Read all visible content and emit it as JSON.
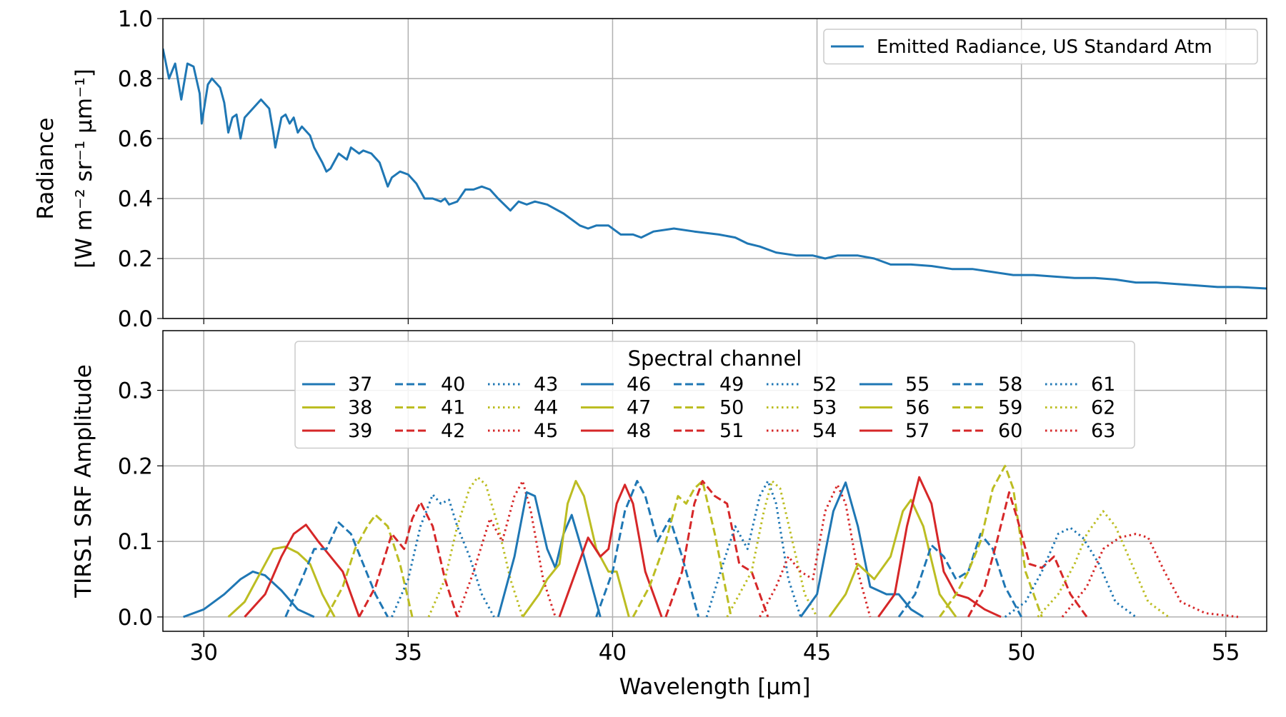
{
  "chart_data": [
    {
      "type": "line",
      "ylabel": [
        "Radiance",
        "[W m⁻² sr⁻¹ μm⁻¹]"
      ],
      "xlim": [
        29,
        56
      ],
      "xticks": [
        30,
        35,
        40,
        45,
        50,
        55
      ],
      "ylim": [
        0,
        1
      ],
      "yticks": [
        {
          "value": 0,
          "label": "0.0"
        },
        0.2,
        0.4,
        0.6,
        0.8,
        {
          "value": 1,
          "label": "1.0"
        }
      ],
      "grid": true,
      "legend_loc": "upper right",
      "series": [
        {
          "name": "Emitted Radiance, US Standard Atm",
          "color": "#1f77b4",
          "style": "solid",
          "x": [
            29.0,
            29.15,
            29.3,
            29.45,
            29.6,
            29.75,
            29.9,
            29.95,
            30.1,
            30.2,
            30.4,
            30.5,
            30.6,
            30.7,
            30.8,
            30.9,
            31.0,
            31.2,
            31.4,
            31.6,
            31.7,
            31.75,
            31.9,
            32.0,
            32.1,
            32.2,
            32.3,
            32.4,
            32.6,
            32.7,
            32.9,
            33.0,
            33.1,
            33.3,
            33.5,
            33.6,
            33.8,
            33.9,
            34.1,
            34.3,
            34.5,
            34.6,
            34.8,
            35.0,
            35.2,
            35.4,
            35.6,
            35.8,
            35.9,
            36.0,
            36.2,
            36.4,
            36.6,
            36.8,
            37.0,
            37.2,
            37.5,
            37.7,
            37.9,
            38.1,
            38.4,
            38.8,
            39.2,
            39.4,
            39.6,
            39.9,
            40.2,
            40.5,
            40.7,
            41.0,
            41.5,
            42.0,
            42.6,
            43.0,
            43.3,
            43.6,
            44.0,
            44.5,
            44.9,
            45.2,
            45.5,
            46.0,
            46.4,
            46.8,
            47.3,
            47.8,
            48.3,
            48.8,
            49.3,
            49.8,
            50.3,
            50.8,
            51.3,
            51.8,
            52.3,
            52.8,
            53.3,
            53.8,
            54.3,
            54.8,
            55.3,
            56.0
          ],
          "values": [
            0.9,
            0.8,
            0.85,
            0.73,
            0.85,
            0.84,
            0.75,
            0.65,
            0.78,
            0.8,
            0.77,
            0.72,
            0.62,
            0.67,
            0.68,
            0.6,
            0.67,
            0.7,
            0.73,
            0.7,
            0.62,
            0.57,
            0.67,
            0.68,
            0.65,
            0.67,
            0.62,
            0.64,
            0.61,
            0.57,
            0.52,
            0.49,
            0.5,
            0.55,
            0.53,
            0.57,
            0.55,
            0.56,
            0.55,
            0.52,
            0.44,
            0.47,
            0.49,
            0.48,
            0.45,
            0.4,
            0.4,
            0.39,
            0.4,
            0.38,
            0.39,
            0.43,
            0.43,
            0.44,
            0.43,
            0.4,
            0.36,
            0.39,
            0.38,
            0.39,
            0.38,
            0.35,
            0.31,
            0.3,
            0.31,
            0.31,
            0.28,
            0.28,
            0.27,
            0.29,
            0.3,
            0.29,
            0.28,
            0.27,
            0.25,
            0.24,
            0.22,
            0.21,
            0.21,
            0.2,
            0.21,
            0.21,
            0.2,
            0.18,
            0.18,
            0.175,
            0.165,
            0.165,
            0.155,
            0.145,
            0.145,
            0.14,
            0.135,
            0.135,
            0.13,
            0.12,
            0.12,
            0.115,
            0.11,
            0.105,
            0.105,
            0.1
          ]
        }
      ]
    },
    {
      "type": "line",
      "ylabel": "TIRS1 SRF Amplitude",
      "xlabel": "Wavelength [μm]",
      "xlim": [
        29,
        56
      ],
      "xticks": [
        30,
        35,
        40,
        45,
        50,
        55
      ],
      "ylim": [
        -0.019,
        0.379
      ],
      "yticks": [
        {
          "value": 0,
          "label": "0.0"
        },
        0.1,
        0.2,
        0.3
      ],
      "grid": true,
      "legend_loc": "upper center",
      "legend_title": "Spectral channel",
      "legend_ncol": 9,
      "series": [
        {
          "name": "37",
          "color": "#1f77b4",
          "style": "solid",
          "x": [
            29.5,
            30.0,
            30.5,
            30.9,
            31.2,
            31.5,
            31.9,
            32.3,
            32.7
          ],
          "values": [
            0,
            0.01,
            0.03,
            0.05,
            0.06,
            0.055,
            0.035,
            0.01,
            0
          ]
        },
        {
          "name": "38",
          "color": "#bcbd22",
          "style": "solid",
          "x": [
            30.6,
            31.0,
            31.4,
            31.7,
            32.0,
            32.3,
            32.6,
            32.9,
            33.2
          ],
          "values": [
            0,
            0.02,
            0.06,
            0.09,
            0.093,
            0.085,
            0.07,
            0.03,
            0
          ]
        },
        {
          "name": "39",
          "color": "#d62728",
          "style": "solid",
          "x": [
            31.0,
            31.5,
            31.9,
            32.2,
            32.5,
            32.8,
            33.1,
            33.4,
            33.8
          ],
          "values": [
            0,
            0.03,
            0.08,
            0.11,
            0.122,
            0.1,
            0.08,
            0.06,
            0
          ]
        },
        {
          "name": "40",
          "color": "#1f77b4",
          "style": "dashed",
          "x": [
            32.0,
            32.4,
            32.7,
            33.0,
            33.3,
            33.6,
            33.9,
            34.2,
            34.5
          ],
          "values": [
            0,
            0.05,
            0.09,
            0.09,
            0.125,
            0.11,
            0.07,
            0.03,
            0
          ]
        },
        {
          "name": "41",
          "color": "#bcbd22",
          "style": "dashed",
          "x": [
            33.0,
            33.4,
            33.7,
            34.0,
            34.2,
            34.5,
            34.8,
            35.1
          ],
          "values": [
            0,
            0.04,
            0.09,
            0.12,
            0.135,
            0.12,
            0.07,
            0
          ]
        },
        {
          "name": "42",
          "color": "#d62728",
          "style": "dashed",
          "x": [
            33.8,
            34.2,
            34.6,
            34.9,
            35.1,
            35.3,
            35.6,
            35.9,
            36.2
          ],
          "values": [
            0,
            0.04,
            0.11,
            0.09,
            0.13,
            0.152,
            0.12,
            0.05,
            0
          ]
        },
        {
          "name": "43",
          "color": "#1f77b4",
          "style": "dotted",
          "x": [
            34.6,
            35.0,
            35.3,
            35.6,
            35.8,
            36.0,
            36.2,
            36.5,
            36.8,
            37.1
          ],
          "values": [
            0,
            0.05,
            0.12,
            0.162,
            0.15,
            0.155,
            0.12,
            0.08,
            0.03,
            0
          ]
        },
        {
          "name": "44",
          "color": "#bcbd22",
          "style": "dotted",
          "x": [
            35.5,
            35.9,
            36.2,
            36.5,
            36.7,
            36.9,
            37.2,
            37.5,
            37.8
          ],
          "values": [
            0,
            0.05,
            0.12,
            0.17,
            0.185,
            0.175,
            0.12,
            0.05,
            0
          ]
        },
        {
          "name": "45",
          "color": "#d62728",
          "style": "dotted",
          "x": [
            36.2,
            36.6,
            37.0,
            37.3,
            37.6,
            37.8,
            38.0,
            38.3,
            38.6
          ],
          "values": [
            0,
            0.06,
            0.13,
            0.1,
            0.16,
            0.18,
            0.14,
            0.05,
            0
          ]
        },
        {
          "name": "46",
          "color": "#1f77b4",
          "style": "solid",
          "x": [
            37.2,
            37.6,
            37.9,
            38.1,
            38.4,
            38.6,
            38.8,
            39.0,
            39.3,
            39.7
          ],
          "values": [
            0,
            0.08,
            0.165,
            0.16,
            0.09,
            0.065,
            0.11,
            0.135,
            0.08,
            0
          ]
        },
        {
          "name": "47",
          "color": "#bcbd22",
          "style": "solid",
          "x": [
            37.8,
            38.2,
            38.4,
            38.7,
            38.9,
            39.1,
            39.3,
            39.6,
            39.9,
            40.1,
            40.4
          ],
          "values": [
            0,
            0.03,
            0.05,
            0.07,
            0.15,
            0.18,
            0.16,
            0.09,
            0.06,
            0.06,
            0
          ]
        },
        {
          "name": "48",
          "color": "#d62728",
          "style": "solid",
          "x": [
            38.7,
            39.1,
            39.4,
            39.7,
            39.9,
            40.1,
            40.3,
            40.5,
            40.8,
            41.2
          ],
          "values": [
            0,
            0.06,
            0.105,
            0.08,
            0.09,
            0.15,
            0.175,
            0.15,
            0.06,
            0
          ]
        },
        {
          "name": "49",
          "color": "#1f77b4",
          "style": "dashed",
          "x": [
            39.6,
            40.0,
            40.3,
            40.6,
            40.8,
            41.1,
            41.4,
            41.7,
            42.1
          ],
          "values": [
            0,
            0.06,
            0.14,
            0.18,
            0.16,
            0.1,
            0.13,
            0.08,
            0
          ]
        },
        {
          "name": "50",
          "color": "#bcbd22",
          "style": "dashed",
          "x": [
            40.5,
            40.9,
            41.3,
            41.6,
            41.8,
            42.0,
            42.2,
            42.5,
            42.9
          ],
          "values": [
            0,
            0.04,
            0.1,
            0.16,
            0.15,
            0.17,
            0.18,
            0.11,
            0
          ]
        },
        {
          "name": "51",
          "color": "#d62728",
          "style": "dashed",
          "x": [
            41.3,
            41.7,
            42.0,
            42.2,
            42.5,
            42.8,
            43.1,
            43.4,
            43.8
          ],
          "values": [
            0,
            0.06,
            0.15,
            0.18,
            0.16,
            0.15,
            0.07,
            0.06,
            0
          ]
        },
        {
          "name": "52",
          "color": "#1f77b4",
          "style": "dotted",
          "x": [
            42.3,
            42.7,
            43.0,
            43.3,
            43.6,
            43.8,
            44.0,
            44.3,
            44.6
          ],
          "values": [
            0,
            0.07,
            0.12,
            0.09,
            0.16,
            0.18,
            0.15,
            0.05,
            0
          ]
        },
        {
          "name": "53",
          "color": "#bcbd22",
          "style": "dotted",
          "x": [
            42.8,
            43.1,
            43.4,
            43.7,
            43.9,
            44.1,
            44.4,
            44.7,
            45.0
          ],
          "values": [
            0,
            0.03,
            0.06,
            0.14,
            0.18,
            0.17,
            0.1,
            0.03,
            0
          ]
        },
        {
          "name": "54",
          "color": "#d62728",
          "style": "dotted",
          "x": [
            43.6,
            44.0,
            44.3,
            44.6,
            44.9,
            45.2,
            45.5,
            45.7,
            46.0,
            46.3
          ],
          "values": [
            0,
            0.04,
            0.08,
            0.06,
            0.05,
            0.14,
            0.175,
            0.15,
            0.06,
            0
          ]
        },
        {
          "name": "55",
          "color": "#1f77b4",
          "style": "solid",
          "x": [
            44.6,
            45.0,
            45.4,
            45.7,
            46.0,
            46.3,
            46.7,
            47.0,
            47.3,
            47.6
          ],
          "values": [
            0,
            0.03,
            0.14,
            0.178,
            0.12,
            0.04,
            0.03,
            0.03,
            0.01,
            0
          ]
        },
        {
          "name": "56",
          "color": "#bcbd22",
          "style": "solid",
          "x": [
            45.3,
            45.7,
            46.0,
            46.4,
            46.8,
            47.1,
            47.3,
            47.6,
            48.0,
            48.4
          ],
          "values": [
            0,
            0.03,
            0.07,
            0.05,
            0.08,
            0.14,
            0.155,
            0.12,
            0.03,
            0
          ]
        },
        {
          "name": "57",
          "color": "#d62728",
          "style": "solid",
          "x": [
            46.5,
            46.9,
            47.2,
            47.5,
            47.8,
            48.1,
            48.4,
            48.7,
            49.1,
            49.5
          ],
          "values": [
            0,
            0.03,
            0.12,
            0.185,
            0.15,
            0.06,
            0.03,
            0.025,
            0.01,
            0
          ]
        },
        {
          "name": "58",
          "color": "#1f77b4",
          "style": "dashed",
          "x": [
            47.0,
            47.4,
            47.8,
            48.1,
            48.4,
            48.7,
            49.0,
            49.3,
            49.6,
            50.0
          ],
          "values": [
            0,
            0.03,
            0.095,
            0.08,
            0.05,
            0.06,
            0.11,
            0.09,
            0.04,
            0
          ]
        },
        {
          "name": "59",
          "color": "#bcbd22",
          "style": "dashed",
          "x": [
            48.0,
            48.4,
            48.7,
            49.0,
            49.3,
            49.6,
            49.8,
            50.1,
            50.5
          ],
          "values": [
            0,
            0.03,
            0.06,
            0.1,
            0.17,
            0.2,
            0.17,
            0.06,
            0
          ]
        },
        {
          "name": "60",
          "color": "#d62728",
          "style": "dashed",
          "x": [
            48.7,
            49.1,
            49.4,
            49.7,
            49.9,
            50.2,
            50.5,
            50.8,
            51.2,
            51.6
          ],
          "values": [
            0,
            0.04,
            0.1,
            0.165,
            0.13,
            0.07,
            0.065,
            0.08,
            0.03,
            0
          ]
        },
        {
          "name": "61",
          "color": "#1f77b4",
          "style": "dotted",
          "x": [
            49.6,
            50.1,
            50.5,
            50.9,
            51.2,
            51.5,
            51.9,
            52.3,
            52.8
          ],
          "values": [
            0,
            0.02,
            0.06,
            0.11,
            0.118,
            0.105,
            0.07,
            0.02,
            0
          ]
        },
        {
          "name": "62",
          "color": "#bcbd22",
          "style": "dotted",
          "x": [
            50.4,
            50.9,
            51.3,
            51.6,
            52.0,
            52.3,
            52.7,
            53.1,
            53.6
          ],
          "values": [
            0,
            0.03,
            0.07,
            0.11,
            0.14,
            0.12,
            0.07,
            0.02,
            0
          ]
        },
        {
          "name": "63",
          "color": "#d62728",
          "style": "dotted",
          "x": [
            51.0,
            51.6,
            52.0,
            52.4,
            52.8,
            53.1,
            53.5,
            53.9,
            54.5,
            55.3
          ],
          "values": [
            0,
            0.04,
            0.09,
            0.105,
            0.11,
            0.105,
            0.06,
            0.02,
            0.005,
            0
          ]
        }
      ]
    }
  ]
}
